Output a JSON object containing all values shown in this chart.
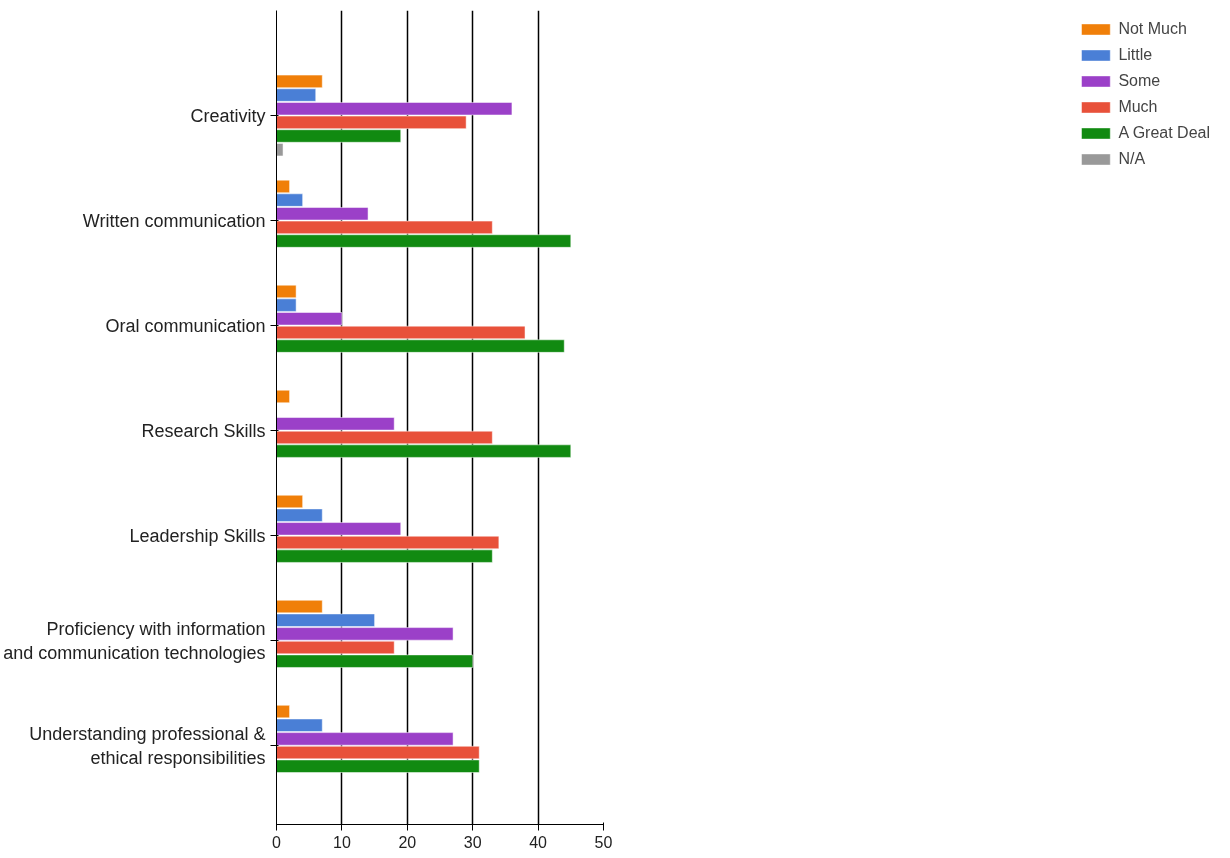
{
  "chart_data": {
    "type": "bar",
    "orientation": "horizontal",
    "categories": [
      "Creativity",
      "Written communication",
      "Oral communication",
      "Research Skills",
      "Leadership Skills",
      "Proficiency with information and communication technologies",
      "Understanding professional & ethical responsibilities"
    ],
    "series": [
      {
        "name": "Not Much",
        "color": "#f07f09",
        "values": [
          7,
          2,
          3,
          2,
          4,
          7,
          2
        ]
      },
      {
        "name": "Little",
        "color": "#4a7fd6",
        "values": [
          6,
          4,
          3,
          null,
          7,
          15,
          7
        ]
      },
      {
        "name": "Some",
        "color": "#9b40c8",
        "values": [
          36,
          14,
          10,
          18,
          19,
          27,
          27
        ]
      },
      {
        "name": "Much",
        "color": "#e8513a",
        "values": [
          29,
          33,
          38,
          33,
          34,
          18,
          31
        ]
      },
      {
        "name": "A Great Deal",
        "color": "#118a11",
        "values": [
          19,
          45,
          44,
          45,
          33,
          30,
          31
        ]
      },
      {
        "name": "N/A",
        "color": "#999999",
        "values": [
          1,
          null,
          null,
          null,
          null,
          null,
          null
        ]
      }
    ],
    "xlim": [
      0,
      50
    ],
    "xticks": [
      0,
      10,
      20,
      30,
      40,
      50
    ],
    "grid": "x",
    "legend": "right"
  }
}
